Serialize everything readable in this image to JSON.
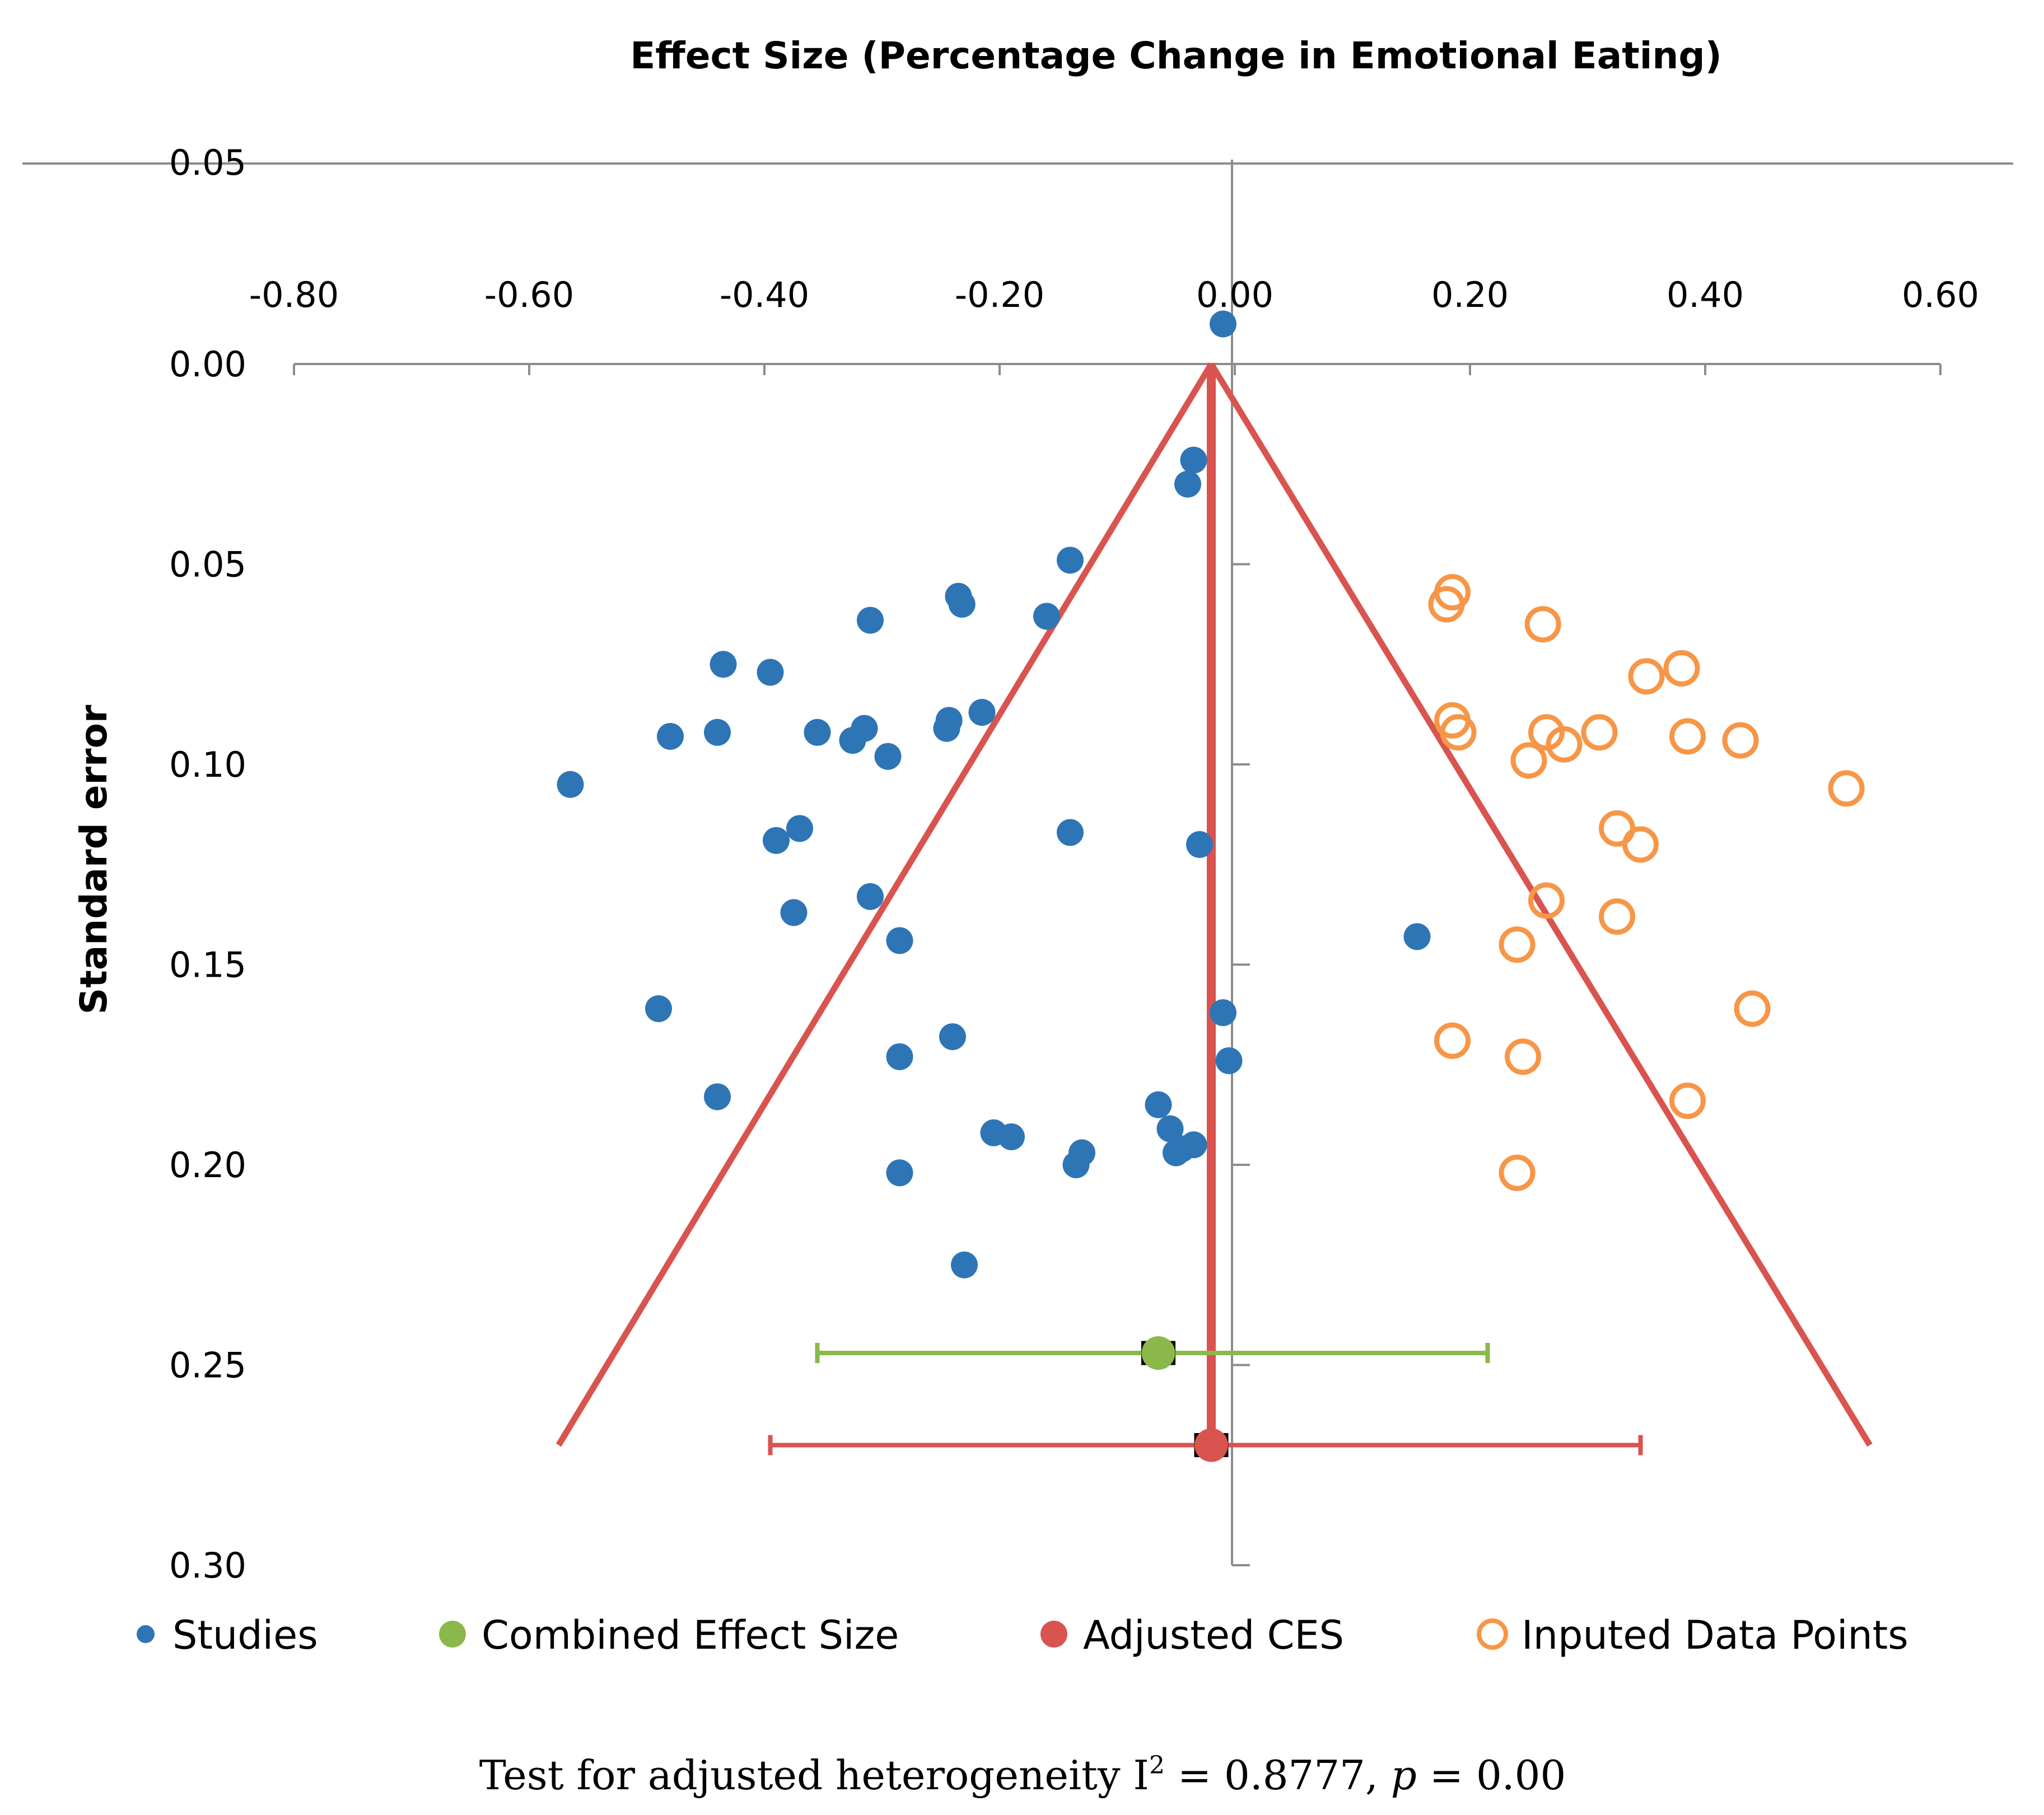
{
  "chart_data": {
    "type": "scatter",
    "title": "Effect Size (Percentage Change in Emotional Eating)",
    "ylabel": "Standard error",
    "xlim": [
      -0.8,
      0.6
    ],
    "ylim": [
      0,
      0.3
    ],
    "x_ticks": [
      "-0.80",
      "-0.60",
      "-0.40",
      "-0.20",
      "0.00",
      "0.20",
      "0.40",
      "0.60"
    ],
    "y_ticks": [
      "0.00",
      "0.05",
      "0.10",
      "0.15",
      "0.20",
      "0.25",
      "0.30"
    ],
    "top_label": "0.05",
    "series": [
      {
        "name": "Studies",
        "color": "#2e75b6",
        "marker": "filled-circle",
        "points": [
          [
            -0.01,
            -0.01
          ],
          [
            -0.035,
            0.024
          ],
          [
            -0.04,
            0.03
          ],
          [
            -0.14,
            0.049
          ],
          [
            -0.235,
            0.058
          ],
          [
            -0.232,
            0.06
          ],
          [
            -0.16,
            0.063
          ],
          [
            -0.31,
            0.064
          ],
          [
            -0.435,
            0.075
          ],
          [
            -0.395,
            0.077
          ],
          [
            -0.215,
            0.087
          ],
          [
            -0.243,
            0.089
          ],
          [
            -0.245,
            0.091
          ],
          [
            -0.48,
            0.093
          ],
          [
            -0.44,
            0.092
          ],
          [
            -0.355,
            0.092
          ],
          [
            -0.315,
            0.091
          ],
          [
            -0.325,
            0.094
          ],
          [
            -0.295,
            0.098
          ],
          [
            -0.565,
            0.105
          ],
          [
            -0.37,
            0.116
          ],
          [
            -0.39,
            0.119
          ],
          [
            -0.14,
            0.117
          ],
          [
            -0.03,
            0.12
          ],
          [
            -0.31,
            0.133
          ],
          [
            -0.375,
            0.137
          ],
          [
            -0.285,
            0.144
          ],
          [
            0.155,
            0.143
          ],
          [
            -0.49,
            0.161
          ],
          [
            -0.01,
            0.162
          ],
          [
            -0.24,
            0.168
          ],
          [
            -0.285,
            0.173
          ],
          [
            -0.005,
            0.174
          ],
          [
            -0.44,
            0.183
          ],
          [
            -0.065,
            0.185
          ],
          [
            -0.055,
            0.191
          ],
          [
            -0.205,
            0.192
          ],
          [
            -0.19,
            0.193
          ],
          [
            -0.035,
            0.195
          ],
          [
            -0.045,
            0.196
          ],
          [
            -0.05,
            0.197
          ],
          [
            -0.13,
            0.197
          ],
          [
            -0.135,
            0.2
          ],
          [
            -0.285,
            0.202
          ],
          [
            -0.23,
            0.225
          ]
        ]
      },
      {
        "name": "Inputed Data Points",
        "color": "#f79646",
        "marker": "open-circle",
        "points": [
          [
            0.185,
            0.057
          ],
          [
            0.18,
            0.06
          ],
          [
            0.262,
            0.065
          ],
          [
            0.35,
            0.078
          ],
          [
            0.38,
            0.076
          ],
          [
            0.185,
            0.089
          ],
          [
            0.19,
            0.092
          ],
          [
            0.265,
            0.092
          ],
          [
            0.31,
            0.092
          ],
          [
            0.385,
            0.093
          ],
          [
            0.28,
            0.095
          ],
          [
            0.43,
            0.094
          ],
          [
            0.25,
            0.099
          ],
          [
            0.52,
            0.106
          ],
          [
            0.325,
            0.116
          ],
          [
            0.345,
            0.12
          ],
          [
            0.265,
            0.134
          ],
          [
            0.325,
            0.138
          ],
          [
            0.24,
            0.145
          ],
          [
            0.44,
            0.161
          ],
          [
            0.185,
            0.169
          ],
          [
            0.245,
            0.173
          ],
          [
            0.385,
            0.184
          ],
          [
            0.24,
            0.202
          ]
        ]
      },
      {
        "name": "Combined Effect Size",
        "color": "#8ab84a",
        "marker": "filled-circle",
        "points": [
          [
            -0.065,
            0.247
          ]
        ],
        "ci": [
          -0.355,
          0.215
        ]
      },
      {
        "name": "Adjusted CES",
        "color": "#d9534f",
        "marker": "filled-circle",
        "points": [
          [
            -0.02,
            0.27
          ]
        ],
        "ci": [
          -0.395,
          0.345
        ]
      }
    ],
    "funnel": {
      "color": "#d9534f",
      "apex": [
        -0.02,
        0.0
      ],
      "base_left": [
        -0.575,
        0.27
      ],
      "base_right": [
        0.54,
        0.27
      ],
      "vertical_x": -0.02
    },
    "legend_position": "bottom",
    "annotation": "Test for adjusted heterogeneity I² = 0.8777, p = 0.00",
    "annotation_parts": {
      "prefix": "Test for adjusted heterogeneity I",
      "sup": "2",
      "middle": " = 0.8777, ",
      "p": "p",
      "suffix": " = 0.00"
    }
  }
}
